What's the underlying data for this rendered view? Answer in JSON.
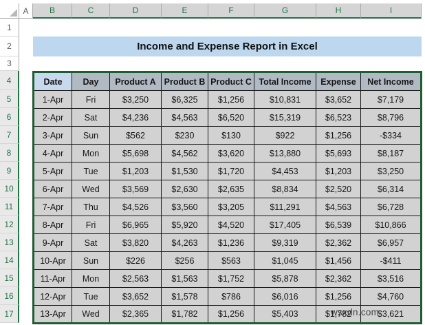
{
  "watermark": "wsxdn.com",
  "spreadsheet": {
    "title": "Income and Expense Report in Excel",
    "column_letters": [
      "A",
      "B",
      "C",
      "D",
      "E",
      "F",
      "G",
      "H",
      "I"
    ],
    "row_numbers": [
      "1",
      "2",
      "3",
      "4",
      "5",
      "6",
      "7",
      "8",
      "9",
      "10",
      "11",
      "12",
      "13",
      "14",
      "15",
      "16",
      "17"
    ],
    "selection": {
      "selected_range": "B4:I17",
      "active_cell": "B4"
    },
    "table": {
      "headers": [
        "Date",
        "Day",
        "Product A",
        "Product B",
        "Product C",
        "Total Income",
        "Expense",
        "Net Income"
      ],
      "rows": [
        [
          "1-Apr",
          "Fri",
          "$3,250",
          "$6,325",
          "$1,256",
          "$10,831",
          "$3,652",
          "$7,179"
        ],
        [
          "2-Apr",
          "Sat",
          "$4,236",
          "$4,563",
          "$6,520",
          "$15,319",
          "$6,523",
          "$8,796"
        ],
        [
          "3-Apr",
          "Sun",
          "$562",
          "$230",
          "$130",
          "$922",
          "$1,256",
          "-$334"
        ],
        [
          "4-Apr",
          "Mon",
          "$5,698",
          "$4,562",
          "$3,620",
          "$13,880",
          "$5,693",
          "$8,187"
        ],
        [
          "5-Apr",
          "Tue",
          "$1,203",
          "$1,530",
          "$1,720",
          "$4,453",
          "$1,203",
          "$3,250"
        ],
        [
          "6-Apr",
          "Wed",
          "$3,569",
          "$2,630",
          "$2,635",
          "$8,834",
          "$2,520",
          "$6,314"
        ],
        [
          "7-Apr",
          "Thu",
          "$4,526",
          "$3,560",
          "$3,205",
          "$11,291",
          "$4,563",
          "$6,728"
        ],
        [
          "8-Apr",
          "Fri",
          "$6,965",
          "$5,920",
          "$4,520",
          "$17,405",
          "$6,539",
          "$10,866"
        ],
        [
          "9-Apr",
          "Sat",
          "$3,820",
          "$4,263",
          "$1,236",
          "$9,319",
          "$2,362",
          "$6,957"
        ],
        [
          "10-Apr",
          "Sun",
          "$226",
          "$256",
          "$563",
          "$1,045",
          "$1,456",
          "-$411"
        ],
        [
          "11-Apr",
          "Mon",
          "$2,563",
          "$1,563",
          "$1,752",
          "$5,878",
          "$2,362",
          "$3,516"
        ],
        [
          "12-Apr",
          "Tue",
          "$3,652",
          "$1,578",
          "$786",
          "$6,016",
          "$1,256",
          "$4,760"
        ],
        [
          "13-Apr",
          "Wed",
          "$2,365",
          "$1,782",
          "$1,256",
          "$5,403",
          "$1,782",
          "$3,621"
        ]
      ]
    },
    "colors": {
      "accent_green": "#217346",
      "table_border_green": "#1e5c32",
      "title_fill": "#bdd7ee",
      "header_row_fill": "#b1b9c3",
      "active_cell_fill": "#c7d9ec",
      "data_cell_fill": "#d2d2d2",
      "column_header_fill": "#d5d5d5",
      "row_header_selected_fill": "#e9e9e9"
    }
  }
}
